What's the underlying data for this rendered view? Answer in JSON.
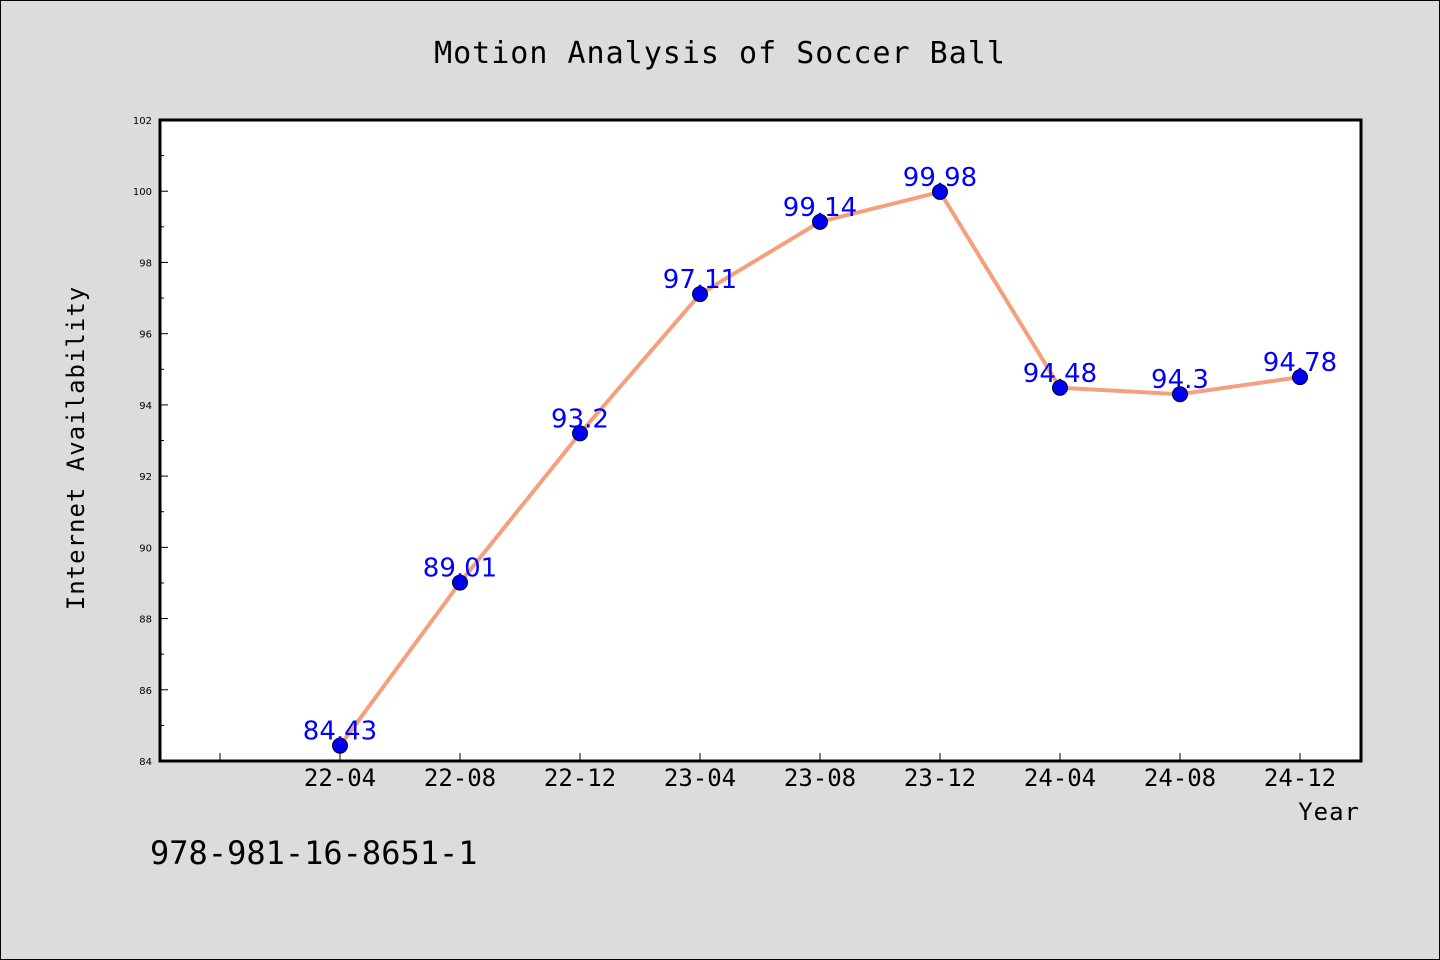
{
  "footer_code": "978-981-16-8651-1",
  "colors": {
    "background": "#dcdcdc",
    "plot_background": "#ffffff",
    "line": "#f4a07c",
    "marker": "#0000ee",
    "data_label": "#0000ff"
  },
  "chart_data": {
    "type": "line",
    "title": "Motion Analysis of Soccer Ball",
    "xlabel": "Year",
    "ylabel": "Internet Availability",
    "categories": [
      "22-04",
      "22-08",
      "22-12",
      "23-04",
      "23-08",
      "23-12",
      "24-04",
      "24-08",
      "24-12"
    ],
    "series": [
      {
        "values": [
          84.43,
          89.01,
          93.2,
          97.11,
          99.14,
          99.98,
          94.48,
          94.3,
          94.78
        ],
        "labels": [
          "84.43",
          "89.01",
          "93.2",
          "97.11",
          "99.14",
          "99.98",
          "94.48",
          "94.3",
          "94.78"
        ]
      }
    ],
    "ylim": [
      84,
      102
    ],
    "y_ticks": [
      "84",
      "86",
      "88",
      "90",
      "92",
      "94",
      "96",
      "98",
      "100",
      "102"
    ],
    "y_tick_values": [
      84,
      86,
      88,
      90,
      92,
      94,
      96,
      98,
      100,
      102
    ],
    "grid": false,
    "legend": "none"
  }
}
